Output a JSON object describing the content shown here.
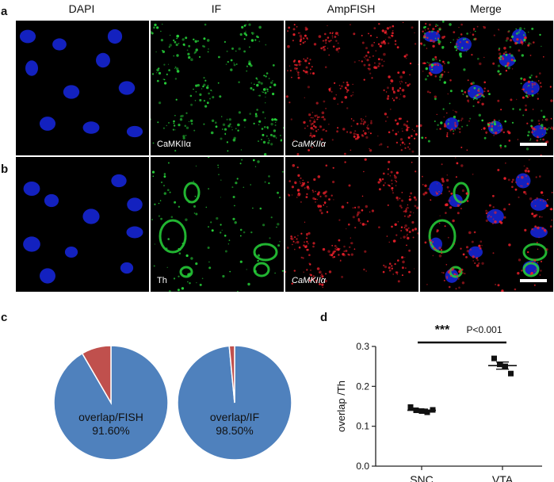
{
  "panels": {
    "a": "a",
    "b": "b",
    "c": "c",
    "d": "d"
  },
  "columns": [
    "DAPI",
    "IF",
    "AmpFISH",
    "Merge"
  ],
  "row_a_labels": {
    "if": "CaMKIIα",
    "fish": "CaMKIIα"
  },
  "row_b_labels": {
    "if": "Th",
    "fish": "CaMKIIα"
  },
  "colors": {
    "dapi": "#1a2cff",
    "if": "#27d43a",
    "fish": "#e8202a",
    "pie_main": "#4f81bd",
    "pie_minor": "#c0504d"
  },
  "pies": [
    {
      "label_line1": "overlap/FISH",
      "label_line2": "91.60%",
      "overlap_percent": 91.6
    },
    {
      "label_line1": "overlap/IF",
      "label_line2": "98.50%",
      "overlap_percent": 98.5
    }
  ],
  "chart_data": {
    "type": "scatter",
    "categories": [
      "SNC",
      "VTA"
    ],
    "ylabel": "overlap /Th",
    "ylim": [
      0.0,
      0.3
    ],
    "yticks": [
      "0.0",
      "0.1",
      "0.2",
      "0.3"
    ],
    "significance": "***",
    "p_value": "P<0.001",
    "series": [
      {
        "category": "SNC",
        "points": [
          0.148,
          0.14,
          0.138,
          0.135,
          0.141
        ],
        "mean": 0.14,
        "sem": 0.003
      },
      {
        "category": "VTA",
        "points": [
          0.27,
          0.255,
          0.25,
          0.232
        ],
        "mean": 0.252,
        "sem": 0.009
      }
    ]
  }
}
